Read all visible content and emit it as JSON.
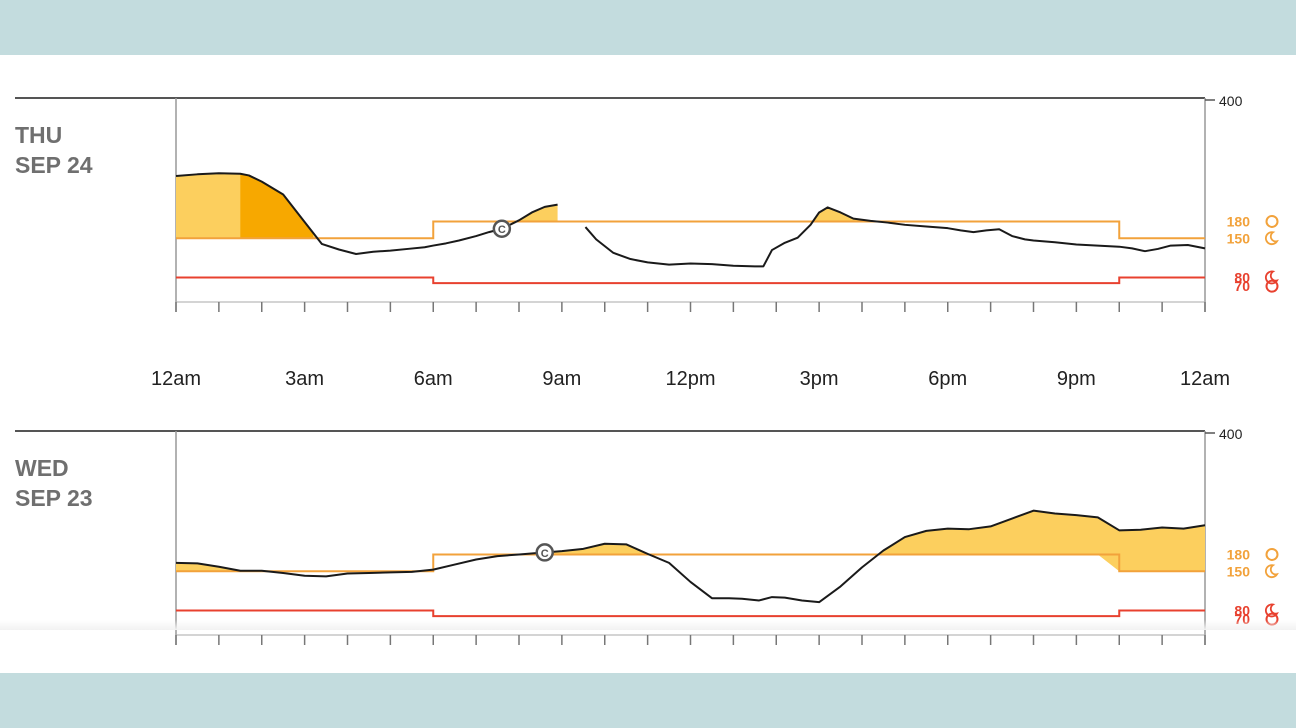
{
  "colors": {
    "background": "#c3dcde",
    "curve": "#1a1a1a",
    "high_fill": "#fccf5e",
    "high_fill_dark": "#f7a800",
    "high_line": "#f2a23b",
    "low_line": "#e8412f",
    "axis": "#555555"
  },
  "icons": {
    "sun": "sun-icon",
    "moon": "moon-icon",
    "calibration": "calibration-c-marker"
  },
  "x_axis": {
    "ticks": [
      "12am",
      "3am",
      "6am",
      "9am",
      "12pm",
      "3pm",
      "6pm",
      "9pm",
      "12am"
    ],
    "range_hours": [
      0,
      24
    ]
  },
  "y_axis": {
    "max_label": "400",
    "range": [
      40,
      400
    ]
  },
  "thresholds": {
    "high_day": {
      "value": "180",
      "icon": "sun-icon"
    },
    "high_night": {
      "value": "150",
      "icon": "moon-icon"
    },
    "low_night": {
      "value": "80",
      "icon": "moon-icon"
    },
    "low_day": {
      "value": "70",
      "icon": "sun-icon"
    },
    "day_start_hour": 6,
    "night_start_hour": 22
  },
  "days": [
    {
      "day": "THU",
      "date": "SEP 24",
      "calibration_hour": 7.6,
      "chart_data": {
        "type": "line",
        "x": [
          0,
          0.5,
          1,
          1.5,
          1.7,
          2,
          2.5,
          3,
          3.4,
          3.8,
          4.2,
          4.6,
          5,
          5.4,
          5.8,
          6,
          6.3,
          6.6,
          7,
          7.3,
          7.6,
          8,
          8.3,
          8.6,
          8.9,
          9.1,
          9.3,
          9.55,
          9.8,
          10.2,
          10.6,
          11,
          11.5,
          12,
          12.5,
          13,
          13.5,
          13.7,
          13.9,
          14.2,
          14.5,
          14.8,
          15,
          15.2,
          15.5,
          15.8,
          16.2,
          16.6,
          17,
          17.5,
          18,
          18.3,
          18.6,
          18.9,
          19.2,
          19.5,
          19.8,
          20,
          20.5,
          21,
          21.5,
          22,
          22.3,
          22.6,
          22.9,
          23.2,
          23.6,
          24
        ],
        "y": [
          261,
          264,
          266,
          265,
          262,
          251,
          228,
          179,
          140,
          130,
          122,
          126,
          128,
          131,
          134,
          137,
          141,
          146,
          154,
          161,
          167,
          182,
          196,
          206,
          210,
          null,
          null,
          170,
          148,
          124,
          113,
          107,
          103,
          105,
          104,
          101,
          100,
          100,
          129,
          142,
          151,
          174,
          196,
          205,
          196,
          185,
          181,
          178,
          174,
          171,
          168,
          164,
          161,
          164,
          166,
          154,
          148,
          146,
          143,
          139,
          137,
          135,
          132,
          127,
          131,
          137,
          138,
          132
        ]
      }
    },
    {
      "day": "WED",
      "date": "SEP 23",
      "calibration_hour": 8.6,
      "chart_data": {
        "type": "line",
        "x": [
          0,
          0.5,
          1,
          1.5,
          2,
          2.5,
          3,
          3.5,
          4,
          4.5,
          5,
          5.5,
          6,
          6.5,
          7,
          7.5,
          8,
          8.5,
          9,
          9.5,
          10,
          10.5,
          11,
          11.5,
          12,
          12.5,
          12.9,
          13.2,
          13.6,
          13.9,
          14.2,
          14.6,
          15,
          15.5,
          16,
          16.5,
          17,
          17.5,
          18,
          18.5,
          19,
          19.5,
          20,
          20.5,
          21,
          21.5,
          22,
          22.5,
          23,
          23.5,
          24
        ],
        "y": [
          165,
          164,
          158,
          151,
          151,
          147,
          142,
          141,
          146,
          147,
          148,
          149,
          153,
          162,
          171,
          177,
          180,
          183,
          186,
          190,
          199,
          198,
          181,
          165,
          131,
          102,
          102,
          101,
          98,
          104,
          103,
          98,
          95,
          123,
          157,
          187,
          211,
          222,
          226,
          225,
          230,
          244,
          258,
          253,
          250,
          246,
          223,
          224,
          228,
          226,
          232
        ]
      }
    }
  ]
}
